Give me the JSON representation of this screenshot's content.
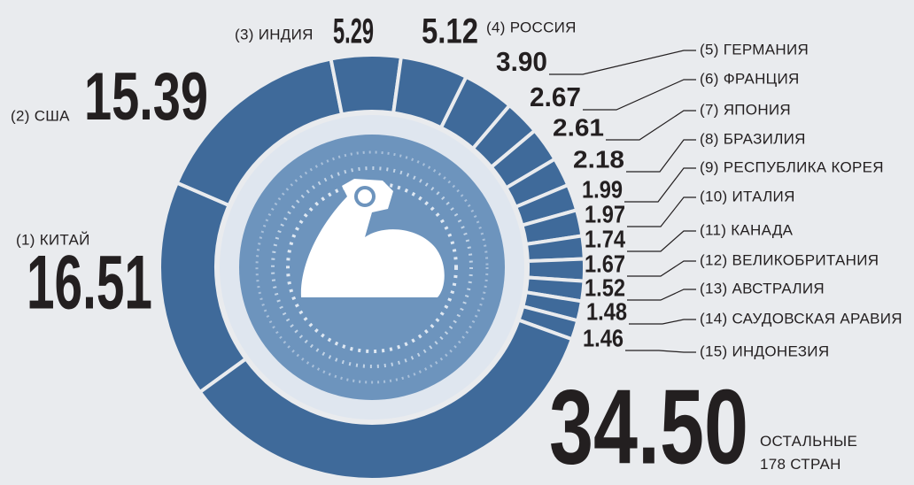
{
  "chart_data": {
    "type": "pie",
    "categories": [
      "(1) КИТАЙ",
      "(2) США",
      "(3) ИНДИЯ",
      "(4) РОССИЯ",
      "(5) ГЕРМАНИЯ",
      "(6) ФРАНЦИЯ",
      "(7) ЯПОНИЯ",
      "(8) БРАЗИЛИЯ",
      "(9) РЕСПУБЛИКА КОРЕЯ",
      "(10) ИТАЛИЯ",
      "(11) КАНАДА",
      "(12) ВЕЛИКОБРИТАНИЯ",
      "(13) АВСТРАЛИЯ",
      "(14) САУДОВСКАЯ АРАВИЯ",
      "(15) ИНДОНЕЗИЯ",
      "ОСТАЛЬНЫЕ\n178 СТРАН"
    ],
    "values": [
      16.51,
      15.39,
      5.29,
      5.12,
      3.9,
      2.67,
      2.61,
      2.18,
      1.99,
      1.97,
      1.74,
      1.67,
      1.52,
      1.48,
      1.46,
      34.5
    ],
    "value_labels": [
      "16.51",
      "15.39",
      "5.29",
      "5.12",
      "3.90",
      "2.67",
      "2.61",
      "2.18",
      "1.99",
      "1.97",
      "1.74",
      "1.67",
      "1.52",
      "1.48",
      "1.46",
      "34.50"
    ],
    "color": "#3f6a9a"
  }
}
